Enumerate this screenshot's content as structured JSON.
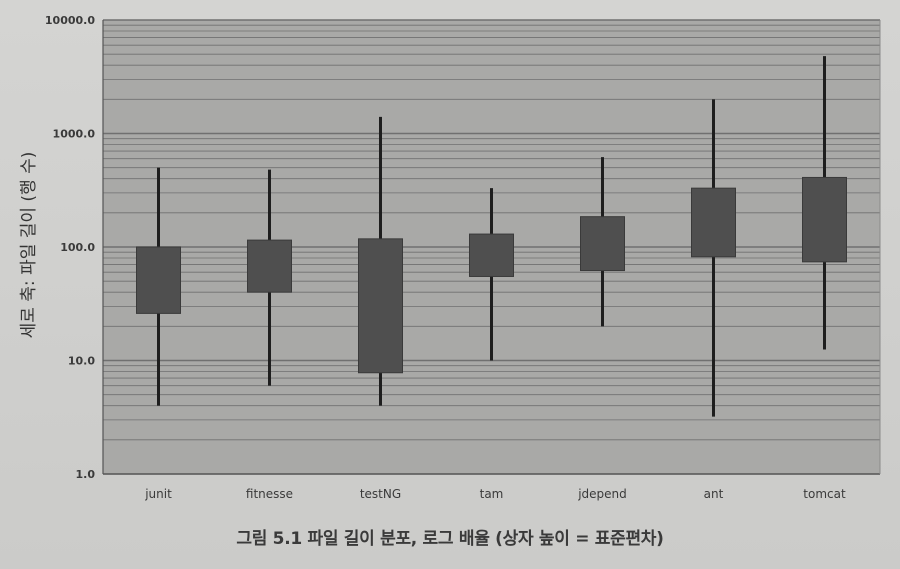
{
  "caption": "그림 5.1 파일 길이 분포, 로그 배율 (상자 높이 = 표준편차)",
  "chart_data": {
    "type": "boxplot",
    "ylabel": "세로 축: 파일 길이 (행 수)",
    "y_scale": "log",
    "ylim": [
      1,
      10000
    ],
    "y_ticks": [
      "1.0",
      "10.0",
      "100.0",
      "1000.0",
      "10000.0"
    ],
    "grid": true,
    "categories": [
      "junit",
      "fitnesse",
      "testNG",
      "tam",
      "jdepend",
      "ant",
      "tomcat"
    ],
    "boxes": [
      {
        "min": 4,
        "box_low": 26,
        "box_high": 100,
        "max": 500
      },
      {
        "min": 6,
        "box_low": 40,
        "box_high": 115,
        "max": 480
      },
      {
        "min": 4,
        "box_low": 7.8,
        "box_high": 118,
        "max": 1400
      },
      {
        "min": 10,
        "box_low": 55,
        "box_high": 130,
        "max": 330
      },
      {
        "min": 20,
        "box_low": 62,
        "box_high": 185,
        "max": 620
      },
      {
        "min": 3.2,
        "box_low": 82,
        "box_high": 330,
        "max": 2000
      },
      {
        "min": 12.5,
        "box_low": 74,
        "box_high": 410,
        "max": 4800
      }
    ],
    "colors": {
      "plot_bg": "#a9a9a7",
      "box_fill": "#4f4f4f",
      "whisker": "#1e1e1e",
      "grid": "#707070"
    }
  }
}
